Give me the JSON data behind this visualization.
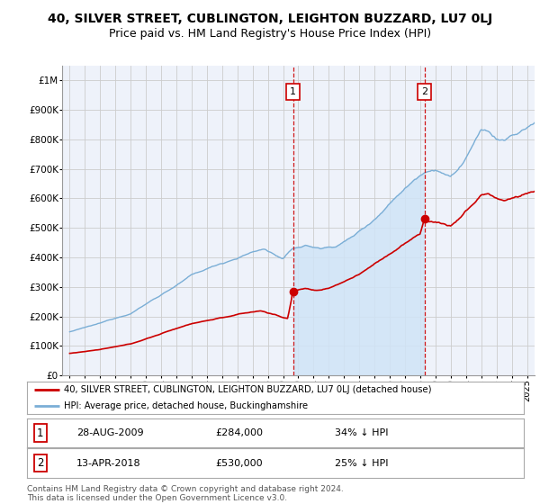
{
  "title": "40, SILVER STREET, CUBLINGTON, LEIGHTON BUZZARD, LU7 0LJ",
  "subtitle": "Price paid vs. HM Land Registry's House Price Index (HPI)",
  "legend_red": "40, SILVER STREET, CUBLINGTON, LEIGHTON BUZZARD, LU7 0LJ (detached house)",
  "legend_blue": "HPI: Average price, detached house, Buckinghamshire",
  "footnote": "Contains HM Land Registry data © Crown copyright and database right 2024.\nThis data is licensed under the Open Government Licence v3.0.",
  "marker1_date": "28-AUG-2009",
  "marker1_price": "£284,000",
  "marker1_pct": "34% ↓ HPI",
  "marker1_x": 2009.65,
  "marker1_y": 284000,
  "marker2_date": "13-APR-2018",
  "marker2_price": "£530,000",
  "marker2_pct": "25% ↓ HPI",
  "marker2_x": 2018.28,
  "marker2_y": 530000,
  "ylim": [
    0,
    1050000
  ],
  "xlim_start": 1994.5,
  "xlim_end": 2025.5,
  "red_color": "#cc0000",
  "blue_color": "#7aaed6",
  "blue_fill": "#d0e4f7",
  "grid_color": "#cccccc",
  "bg_color": "#ffffff",
  "plot_bg": "#eef2fa",
  "title_fontsize": 10,
  "subtitle_fontsize": 9,
  "tick_fontsize": 7.5
}
